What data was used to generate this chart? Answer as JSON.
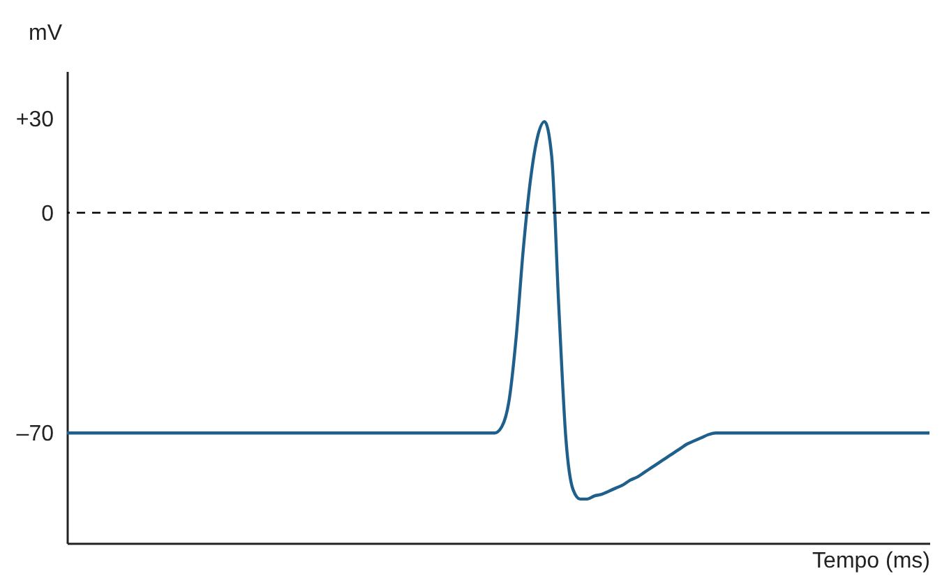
{
  "chart_data": {
    "type": "line",
    "xlabel": "Tempo (ms)",
    "ylabel": "mV",
    "categories": [
      null,
      null,
      null,
      null,
      null,
      null,
      null,
      null,
      null,
      null,
      null,
      null,
      null,
      null,
      null,
      null,
      null,
      null,
      null,
      null,
      null,
      null,
      null,
      null,
      null,
      null,
      null,
      null,
      null,
      null,
      null,
      null,
      null,
      null,
      null,
      null,
      null,
      null,
      null,
      null,
      null,
      null,
      null,
      null,
      null,
      null,
      null,
      null,
      null,
      null,
      null,
      null,
      null,
      null,
      null,
      null,
      null,
      null,
      null,
      null,
      null,
      null,
      null,
      null,
      null,
      null,
      null,
      null,
      null,
      null,
      null,
      null,
      null,
      null,
      null,
      null,
      null,
      null,
      null,
      null,
      null,
      null,
      null,
      null,
      null,
      null,
      null,
      null,
      null,
      null,
      null,
      null,
      null,
      null,
      null,
      null,
      null,
      null,
      null,
      null,
      null,
      null,
      null,
      null,
      null,
      null,
      null,
      null,
      null,
      null,
      null,
      null,
      null,
      null,
      null,
      null,
      null,
      null,
      null,
      null,
      null,
      null
    ],
    "series": [
      {
        "color": "#1f5f8b",
        "values": [
          -70,
          -70,
          -70,
          -70,
          -70,
          -70,
          -70,
          -70,
          -70,
          -70,
          -70,
          -70,
          -70,
          -70,
          -70,
          -70,
          -70,
          -70,
          -70,
          -70,
          -70,
          -70,
          -70,
          -70,
          -70,
          -70,
          -70,
          -70,
          -70,
          -70,
          -70,
          -70,
          -70,
          -70,
          -70,
          -70,
          -70,
          -70,
          -70,
          -70,
          -70,
          -70,
          -70,
          -70,
          -70,
          -70,
          -70,
          -70,
          -70,
          -70,
          -70,
          -70,
          -70,
          -70,
          -70,
          -70,
          -70,
          -70,
          -70,
          -70,
          -70,
          -68,
          -60,
          -40,
          -12,
          10,
          24,
          29,
          18,
          -30,
          -72,
          -88,
          -91,
          -91,
          -90,
          -89.5,
          -88.5,
          -87.5,
          -86.5,
          -85,
          -84,
          -82.5,
          -81,
          -79.5,
          -78,
          -76.5,
          -75,
          -73.5,
          -72.5,
          -71.5,
          -70.5,
          -70,
          -70,
          -70,
          -70,
          -70,
          -70,
          -70,
          -70,
          -70,
          -70,
          -70,
          -70,
          -70,
          -70,
          -70,
          -70,
          -70,
          -70,
          -70,
          -70,
          -70,
          -70,
          -70,
          -70,
          -70,
          -70,
          -70,
          -70,
          -70,
          -70,
          -70
        ]
      }
    ],
    "ylim": [
      -105,
      45
    ],
    "yticks": [
      {
        "value": 30,
        "label": "+30"
      },
      0,
      {
        "value": -70,
        "label": "–70"
      }
    ],
    "ref_lines": [
      {
        "axis": "y",
        "value": 0,
        "color": "#000000",
        "line_style": "dashed"
      }
    ],
    "tick_labels": "y",
    "grid": false,
    "marker": "none",
    "line_style": "solid"
  }
}
